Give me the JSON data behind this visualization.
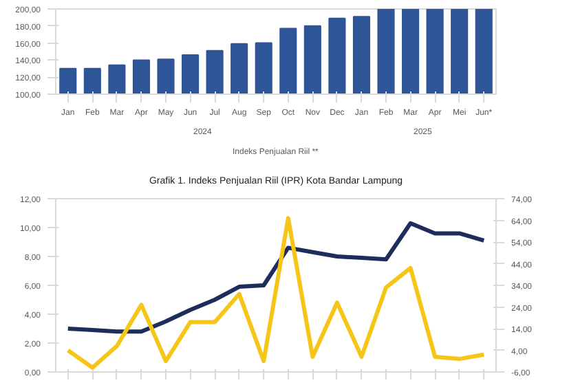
{
  "chart_data": [
    {
      "type": "bar",
      "title": "Grafik 1. Indeks Penjualan Riil (IPR) Kota Bandar Lampung",
      "categories": [
        "Jan",
        "Feb",
        "Mar",
        "Apr",
        "May",
        "Jun",
        "Jul",
        "Aug",
        "Sep",
        "Oct",
        "Nov",
        "Dec",
        "Jan",
        "Feb",
        "Mar",
        "Apr",
        "Mei",
        "Jun*"
      ],
      "series": [
        {
          "name": "Indeks Penjualan Riil **",
          "color": "#2e5597",
          "values": [
            130,
            130,
            134,
            140,
            141,
            146,
            151,
            159,
            160,
            177,
            180,
            189,
            191,
            200,
            200,
            200,
            200,
            200
          ]
        }
      ],
      "ylim": [
        100,
        200
      ],
      "yticks": [
        {
          "value": 100,
          "label": "100,00"
        },
        {
          "value": 120,
          "label": "120,00"
        },
        {
          "value": 140,
          "label": "140,00"
        },
        {
          "value": 160,
          "label": "160,00"
        },
        {
          "value": 180,
          "label": "180,00"
        },
        {
          "value": 200,
          "label": "200,00"
        }
      ],
      "annotations": [
        "2024",
        "2025"
      ],
      "legend": "bottom",
      "grid": false
    },
    {
      "type": "line",
      "categories": [
        null,
        null,
        null,
        null,
        null,
        null,
        null,
        null,
        null,
        null,
        null,
        null,
        null,
        null,
        null,
        null,
        null,
        null
      ],
      "series": [
        {
          "color": "#1f2d5c",
          "values": [
            3.0,
            2.9,
            2.8,
            2.8,
            3.5,
            4.3,
            5.0,
            5.9,
            6.0,
            8.6,
            8.3,
            8.0,
            7.9,
            7.8,
            10.3,
            9.6,
            9.6,
            9.1
          ]
        },
        {
          "color": "#f5c518",
          "axis": "y2",
          "values": [
            4,
            -4,
            6,
            25,
            -1,
            17,
            17,
            30,
            -1,
            65,
            1,
            26,
            1,
            33,
            42,
            1,
            0,
            2
          ]
        }
      ],
      "ylim": [
        0,
        12
      ],
      "yticks": [
        {
          "value": 0,
          "label": "0,00"
        },
        {
          "value": 2,
          "label": "2,00"
        },
        {
          "value": 4,
          "label": "4,00"
        },
        {
          "value": 6,
          "label": "6,00"
        },
        {
          "value": 8,
          "label": "8,00"
        },
        {
          "value": 10,
          "label": "10,00"
        },
        {
          "value": 12,
          "label": "12,00"
        }
      ],
      "y2lim": [
        -6,
        74
      ],
      "y2ticks": [
        {
          "value": -6,
          "label": "-6,00"
        },
        {
          "value": 4,
          "label": "4,00"
        },
        {
          "value": 14,
          "label": "14,00"
        },
        {
          "value": 24,
          "label": "24,00"
        },
        {
          "value": 34,
          "label": "34,00"
        },
        {
          "value": 44,
          "label": "44,00"
        },
        {
          "value": 54,
          "label": "54,00"
        },
        {
          "value": 64,
          "label": "64,00"
        },
        {
          "value": 74,
          "label": "74,00"
        }
      ],
      "marker": "none",
      "line_style": "solid",
      "grid": false
    }
  ]
}
